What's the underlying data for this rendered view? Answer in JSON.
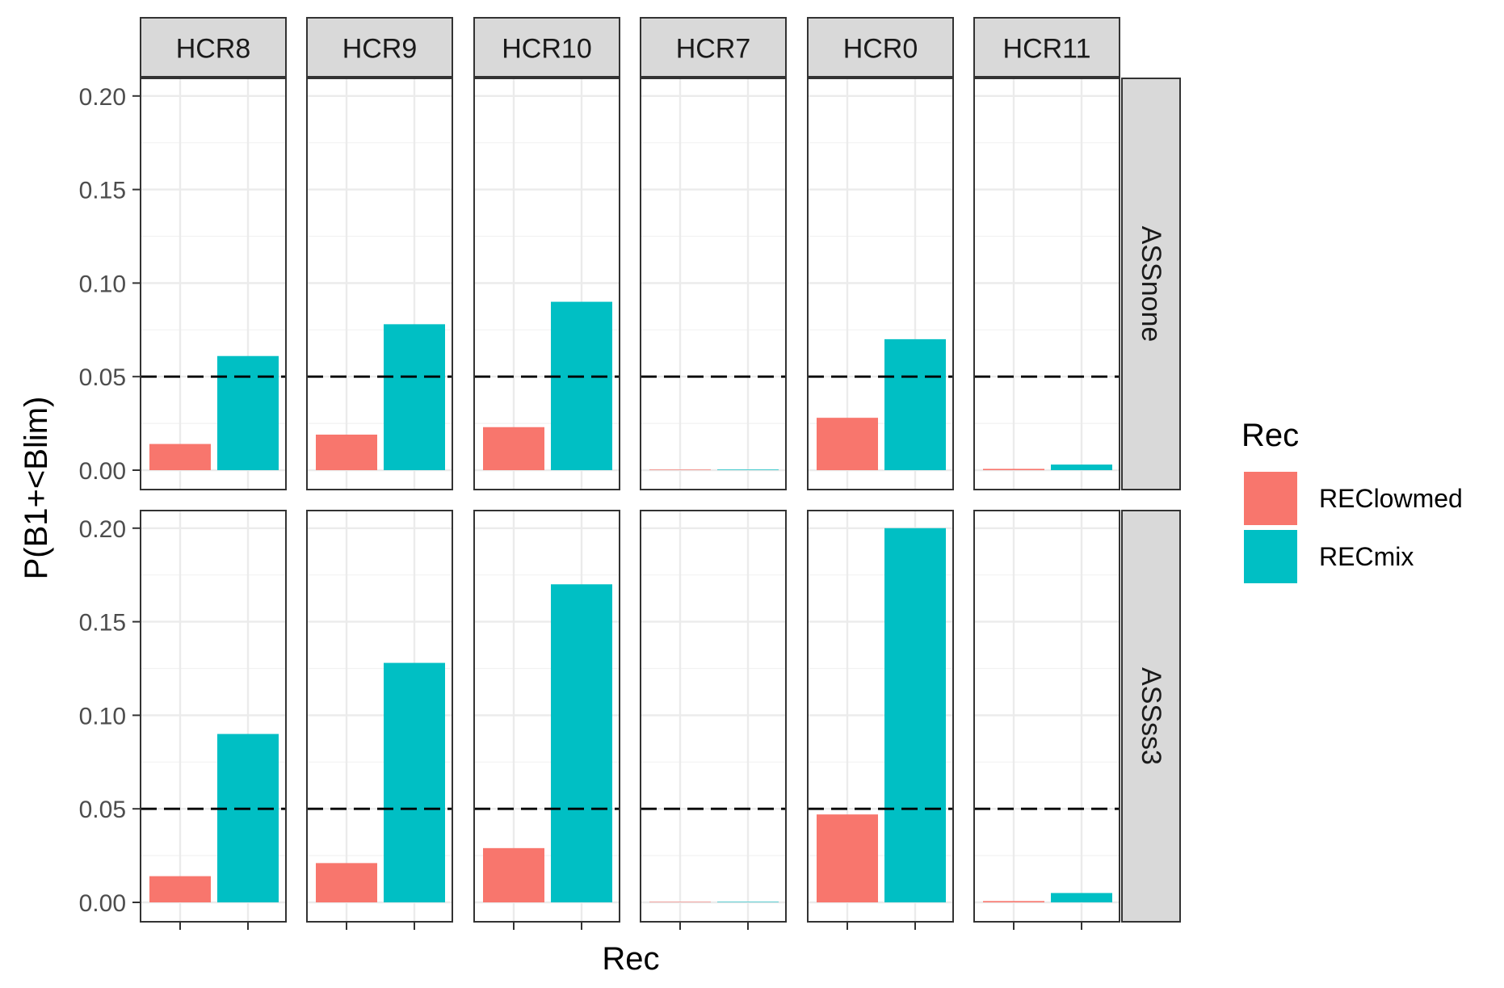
{
  "chart_data": {
    "type": "bar",
    "facet_columns": [
      "HCR8",
      "HCR9",
      "HCR10",
      "HCR7",
      "HCR0",
      "HCR11"
    ],
    "facet_rows": [
      "ASSnone",
      "ASSss3"
    ],
    "categories": [
      "REClowmed",
      "RECmix"
    ],
    "xlabel": "Rec",
    "ylabel": "P(B1+<Blim)",
    "ylim": [
      0,
      0.21
    ],
    "yticks": [
      "0.00",
      "0.05",
      "0.10",
      "0.15",
      "0.20"
    ],
    "reference_line": {
      "y": 0.05,
      "style": "dashed"
    },
    "grid": true,
    "legend": {
      "title": "Rec",
      "placement": "right",
      "items": [
        {
          "label": "REClowmed",
          "color": "#F8766D"
        },
        {
          "label": "RECmix",
          "color": "#00BFC4"
        }
      ]
    },
    "panels": [
      {
        "row": "ASSnone",
        "col": "HCR8",
        "values": [
          0.014,
          0.061
        ]
      },
      {
        "row": "ASSnone",
        "col": "HCR9",
        "values": [
          0.019,
          0.078
        ]
      },
      {
        "row": "ASSnone",
        "col": "HCR10",
        "values": [
          0.023,
          0.09
        ]
      },
      {
        "row": "ASSnone",
        "col": "HCR7",
        "values": [
          0.0003,
          0.0003
        ]
      },
      {
        "row": "ASSnone",
        "col": "HCR0",
        "values": [
          0.028,
          0.07
        ]
      },
      {
        "row": "ASSnone",
        "col": "HCR11",
        "values": [
          0.0007,
          0.003
        ]
      },
      {
        "row": "ASSss3",
        "col": "HCR8",
        "values": [
          0.014,
          0.09
        ]
      },
      {
        "row": "ASSss3",
        "col": "HCR9",
        "values": [
          0.021,
          0.128
        ]
      },
      {
        "row": "ASSss3",
        "col": "HCR10",
        "values": [
          0.029,
          0.17
        ]
      },
      {
        "row": "ASSss3",
        "col": "HCR7",
        "values": [
          0,
          0
        ]
      },
      {
        "row": "ASSss3",
        "col": "HCR0",
        "values": [
          0.047,
          0.2
        ]
      },
      {
        "row": "ASSss3",
        "col": "HCR11",
        "values": [
          0.0007,
          0.005
        ]
      }
    ]
  }
}
